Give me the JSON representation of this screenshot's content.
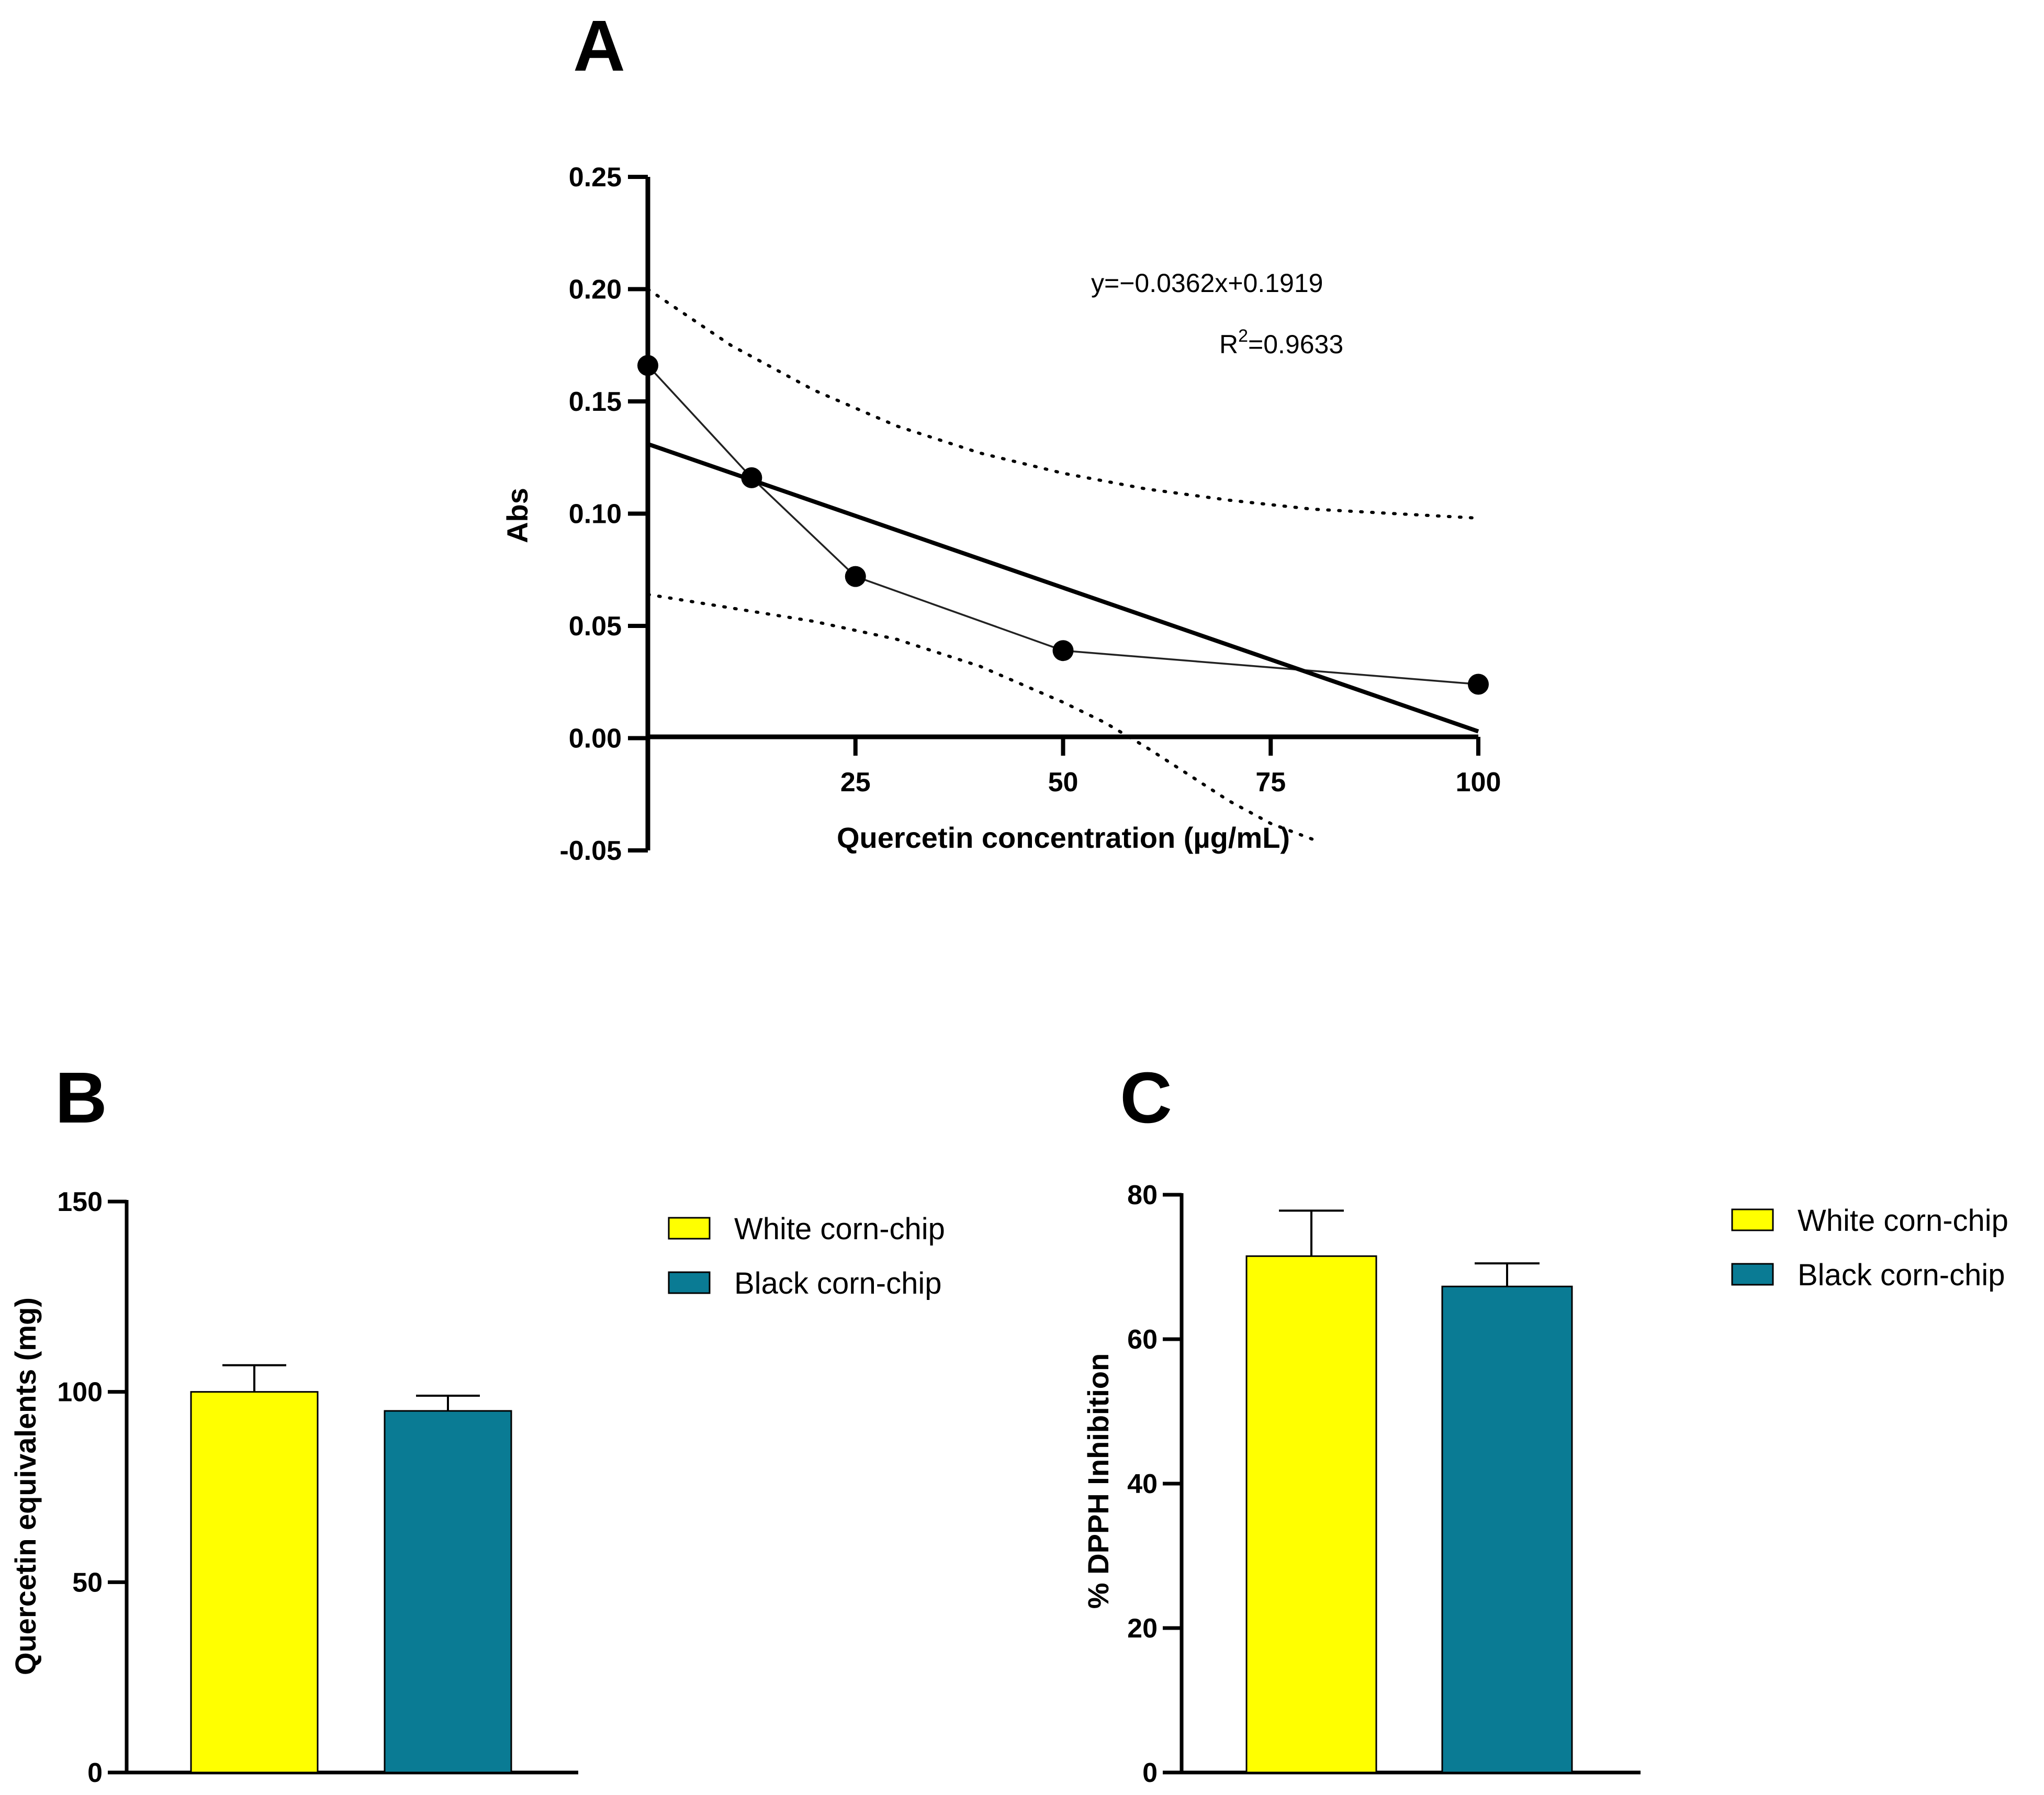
{
  "chart_data": [
    {
      "panel": "A",
      "type": "scatter",
      "title": "",
      "xlabel": "Quercetin concentration (µg/mL)",
      "ylabel": "Abs",
      "xlim": [
        0,
        100
      ],
      "ylim": [
        -0.05,
        0.25
      ],
      "xticks": [
        25,
        50,
        75,
        100
      ],
      "xtick_labels": [
        "25",
        "50",
        "75",
        "100"
      ],
      "yticks": [
        0.25,
        0.2,
        0.15,
        0.1,
        0.05,
        0.0,
        -0.05
      ],
      "ytick_labels": [
        "0.25",
        "0.20",
        "0.15",
        "0.10",
        "0.05",
        "0.00",
        "-0.05"
      ],
      "grid": false,
      "series": [
        {
          "name": "measured",
          "style": "line-markers",
          "x": [
            0,
            12.5,
            25,
            50,
            100
          ],
          "y": [
            0.166,
            0.116,
            0.072,
            0.039,
            0.024
          ]
        },
        {
          "name": "linear fit",
          "style": "thick-line",
          "x": [
            0,
            100
          ],
          "y": [
            0.131,
            0.003
          ]
        },
        {
          "name": "upper confidence band",
          "style": "dotted",
          "x": [
            0,
            10,
            20,
            30,
            40,
            50,
            60,
            70,
            80,
            90,
            100
          ],
          "y": [
            0.2,
            0.175,
            0.155,
            0.139,
            0.127,
            0.118,
            0.111,
            0.106,
            0.102,
            0.1,
            0.098
          ]
        },
        {
          "name": "lower confidence band",
          "style": "dotted",
          "x": [
            0,
            10,
            20,
            30,
            40,
            50,
            55,
            60,
            65,
            70,
            75,
            80
          ],
          "y": [
            0.064,
            0.058,
            0.052,
            0.044,
            0.032,
            0.016,
            0.007,
            -0.004,
            -0.016,
            -0.028,
            -0.038,
            -0.045
          ]
        }
      ],
      "annotations": {
        "equation": "y=−0.0362x+0.1919",
        "r2_label": "R",
        "r2_superscript": "2",
        "r2_value": "=0.9633"
      }
    },
    {
      "panel": "B",
      "type": "bar",
      "title": "",
      "xlabel": "",
      "ylabel": "Quercetin equivalents (mg)",
      "ylim": [
        0,
        150
      ],
      "yticks": [
        0,
        50,
        100,
        150
      ],
      "ytick_labels": [
        "0",
        "50",
        "100",
        "150"
      ],
      "grid": false,
      "categories": [
        "White corn-chip",
        "Black corn-chip"
      ],
      "values": [
        100,
        95
      ],
      "errors": [
        7,
        4
      ],
      "colors": [
        "#ffff00",
        "#0a7b94"
      ],
      "legend_position": "right"
    },
    {
      "panel": "C",
      "type": "bar",
      "title": "",
      "xlabel": "",
      "ylabel": "% DPPH Inhibition",
      "ylim": [
        0,
        80
      ],
      "yticks": [
        0,
        20,
        40,
        60,
        80
      ],
      "ytick_labels": [
        "0",
        "20",
        "40",
        "60",
        "80"
      ],
      "grid": false,
      "categories": [
        "White corn-chip",
        "Black corn-chip"
      ],
      "values": [
        71.5,
        67.3
      ],
      "errors": [
        6.3,
        3.2
      ],
      "colors": [
        "#ffff00",
        "#0a7b94"
      ],
      "legend_position": "right"
    }
  ]
}
